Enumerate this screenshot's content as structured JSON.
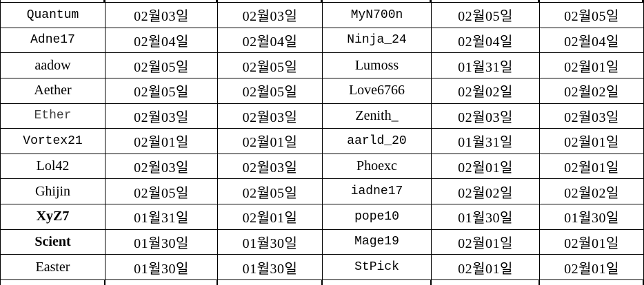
{
  "colors": {
    "border": "#000000",
    "text": "#000000",
    "background": "#ffffff",
    "muted_text": "#3d3d3d"
  },
  "table": {
    "rows": [
      {
        "cells": [
          {
            "text": "Quantum",
            "style": "mono"
          },
          {
            "text": "02월03일",
            "style": "date"
          },
          {
            "text": "02월03일",
            "style": "date"
          },
          {
            "text": "MyN700n",
            "style": "mono"
          },
          {
            "text": "02월05일",
            "style": "date"
          },
          {
            "text": "02월05일",
            "style": "date"
          }
        ]
      },
      {
        "cells": [
          {
            "text": "Adne17",
            "style": "mono"
          },
          {
            "text": "02월04일",
            "style": "date"
          },
          {
            "text": "02월04일",
            "style": "date"
          },
          {
            "text": "Ninja_24",
            "style": "mono"
          },
          {
            "text": "02월04일",
            "style": "date"
          },
          {
            "text": "02월04일",
            "style": "date"
          }
        ]
      },
      {
        "cells": [
          {
            "text": "aadow",
            "style": "serif"
          },
          {
            "text": "02월05일",
            "style": "date"
          },
          {
            "text": "02월05일",
            "style": "date"
          },
          {
            "text": "Lumoss",
            "style": "serif"
          },
          {
            "text": "01월31일",
            "style": "date"
          },
          {
            "text": "02월01일",
            "style": "date"
          }
        ]
      },
      {
        "cells": [
          {
            "text": "Aether",
            "style": "serif"
          },
          {
            "text": "02월05일",
            "style": "date"
          },
          {
            "text": "02월05일",
            "style": "date"
          },
          {
            "text": "Love6766",
            "style": "serif"
          },
          {
            "text": "02월02일",
            "style": "date"
          },
          {
            "text": "02월02일",
            "style": "date"
          }
        ]
      },
      {
        "cells": [
          {
            "text": "Ether",
            "style": "mono-light"
          },
          {
            "text": "02월03일",
            "style": "date"
          },
          {
            "text": "02월03일",
            "style": "date"
          },
          {
            "text": "Zenith_",
            "style": "serif"
          },
          {
            "text": "02월03일",
            "style": "date"
          },
          {
            "text": "02월03일",
            "style": "date"
          }
        ]
      },
      {
        "cells": [
          {
            "text": "Vortex21",
            "style": "mono"
          },
          {
            "text": "02월01일",
            "style": "date"
          },
          {
            "text": "02월01일",
            "style": "date"
          },
          {
            "text": "aarld_20",
            "style": "mono"
          },
          {
            "text": "01월31일",
            "style": "date"
          },
          {
            "text": "02월01일",
            "style": "date"
          }
        ]
      },
      {
        "cells": [
          {
            "text": "Lol42",
            "style": "serif"
          },
          {
            "text": "02월03일",
            "style": "date"
          },
          {
            "text": "02월03일",
            "style": "date"
          },
          {
            "text": "Phoexc",
            "style": "serif"
          },
          {
            "text": "02월01일",
            "style": "date"
          },
          {
            "text": "02월01일",
            "style": "date"
          }
        ]
      },
      {
        "cells": [
          {
            "text": "Ghijin",
            "style": "serif"
          },
          {
            "text": "02월05일",
            "style": "date"
          },
          {
            "text": "02월05일",
            "style": "date"
          },
          {
            "text": "iadne17",
            "style": "mono"
          },
          {
            "text": "02월02일",
            "style": "date"
          },
          {
            "text": "02월02일",
            "style": "date"
          }
        ]
      },
      {
        "cells": [
          {
            "text": "XyZ7",
            "style": "serif-bold"
          },
          {
            "text": "01월31일",
            "style": "date"
          },
          {
            "text": "02월01일",
            "style": "date"
          },
          {
            "text": "pope10",
            "style": "mono"
          },
          {
            "text": "01월30일",
            "style": "date"
          },
          {
            "text": "01월30일",
            "style": "date"
          }
        ]
      },
      {
        "cells": [
          {
            "text": "Scient",
            "style": "serif-bold"
          },
          {
            "text": "01월30일",
            "style": "date"
          },
          {
            "text": "01월30일",
            "style": "date"
          },
          {
            "text": "Mage19",
            "style": "mono"
          },
          {
            "text": "02월01일",
            "style": "date"
          },
          {
            "text": "02월01일",
            "style": "date"
          }
        ]
      },
      {
        "cells": [
          {
            "text": "Easter",
            "style": "serif"
          },
          {
            "text": "01월30일",
            "style": "date"
          },
          {
            "text": "01월30일",
            "style": "date"
          },
          {
            "text": "StPick",
            "style": "mono"
          },
          {
            "text": "02월01일",
            "style": "date"
          },
          {
            "text": "02월01일",
            "style": "date"
          }
        ]
      }
    ]
  }
}
